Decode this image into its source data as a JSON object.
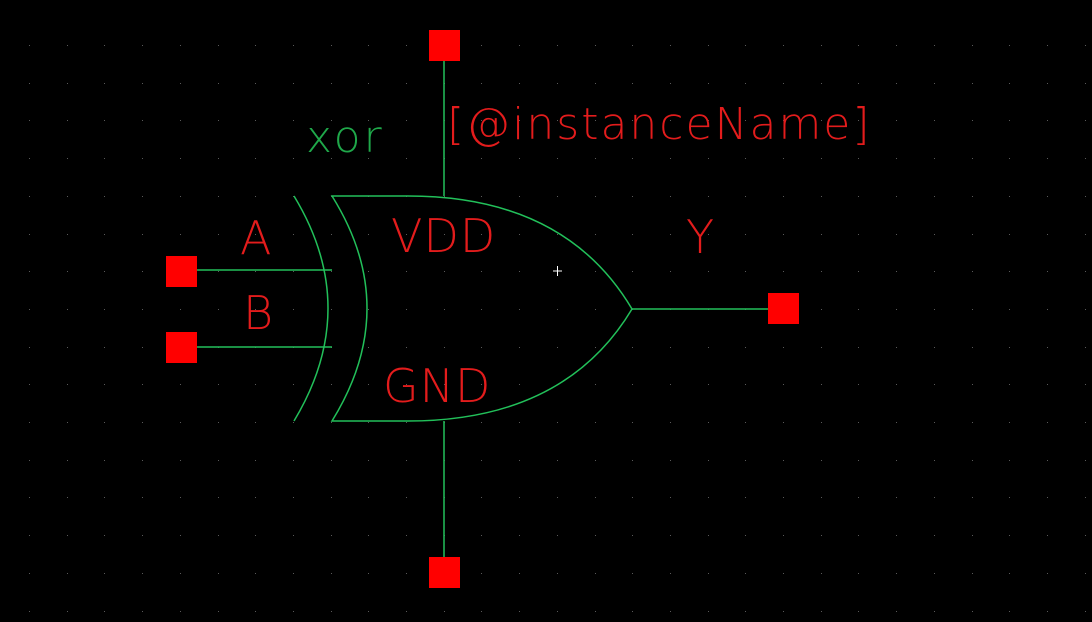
{
  "symbol": {
    "cell_name": "xor",
    "instance_name": "[@instanceName]"
  },
  "pins": {
    "input_a": "A",
    "input_b": "B",
    "output_y": "Y",
    "supply_vdd": "VDD",
    "ground_gnd": "GND"
  },
  "colors": {
    "background": "#000000",
    "grid_dots": "#5a5a5a",
    "wire": "#22c05a",
    "pin": "#ff0000",
    "label_text": "#e31c1c",
    "cell_text": "#1fa84a",
    "cursor": "#ffffff"
  }
}
